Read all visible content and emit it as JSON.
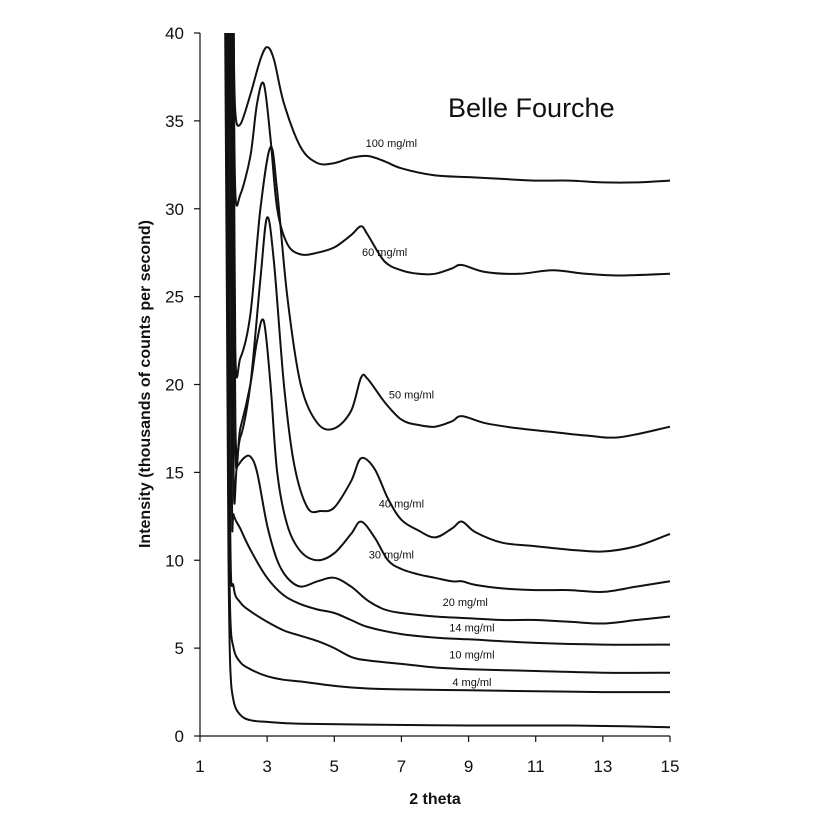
{
  "chart_data": {
    "type": "line",
    "title": "Belle Fourche",
    "xlabel": "2 theta",
    "ylabel": "Intensity  (thousands of counts per second)",
    "xlim": [
      1,
      15
    ],
    "ylim": [
      0,
      40
    ],
    "x_ticks": [
      1,
      3,
      5,
      7,
      9,
      11,
      13,
      15
    ],
    "y_ticks": [
      0,
      5,
      10,
      15,
      20,
      25,
      30,
      35,
      40
    ],
    "grid": false,
    "legend": "none",
    "series": [
      {
        "name": "4 mg/ml",
        "x": [
          1.75,
          1.8,
          1.85,
          1.9,
          2.0,
          2.2,
          2.5,
          3.0,
          4.0,
          6.0,
          9.0,
          12.0,
          15.0
        ],
        "y": [
          40,
          25,
          10,
          4,
          2.0,
          1.2,
          0.9,
          0.8,
          0.7,
          0.65,
          0.6,
          0.6,
          0.5
        ]
      },
      {
        "name": "10 mg/ml",
        "x": [
          1.8,
          1.85,
          1.9,
          2.0,
          2.2,
          2.5,
          3.0,
          3.5,
          4.0,
          5.0,
          6.0,
          7.0,
          9.0,
          11.0,
          13.0,
          15.0
        ],
        "y": [
          40,
          15,
          7,
          5.0,
          4.2,
          3.8,
          3.4,
          3.2,
          3.1,
          2.85,
          2.7,
          2.65,
          2.6,
          2.55,
          2.5,
          2.5
        ]
      },
      {
        "name": "14 mg/ml",
        "x": [
          1.85,
          1.9,
          2.0,
          2.2,
          2.5,
          3.0,
          3.5,
          4.0,
          4.5,
          5.0,
          5.5,
          6.0,
          7.0,
          8.0,
          9.0,
          11.0,
          13.0,
          15.0
        ],
        "y": [
          40,
          12,
          8.5,
          7.6,
          7.1,
          6.5,
          6.0,
          5.7,
          5.4,
          5.0,
          4.5,
          4.3,
          4.1,
          3.9,
          3.8,
          3.7,
          3.6,
          3.6
        ]
      },
      {
        "name": "20 mg/ml",
        "x": [
          1.9,
          1.95,
          2.0,
          2.2,
          2.5,
          3.0,
          3.5,
          4.0,
          4.5,
          5.0,
          5.5,
          6.0,
          7.0,
          8.0,
          9.0,
          11.0,
          13.0,
          15.0
        ],
        "y": [
          40,
          14,
          12.6,
          11.8,
          10.6,
          9.0,
          8.0,
          7.5,
          7.2,
          7.0,
          6.6,
          6.2,
          5.8,
          5.6,
          5.5,
          5.3,
          5.2,
          5.2
        ]
      },
      {
        "name": "30 mg/ml",
        "x": [
          1.95,
          2.0,
          2.1,
          2.3,
          2.5,
          2.7,
          3.0,
          3.3,
          3.6,
          4.0,
          4.5,
          5.0,
          5.5,
          6.0,
          6.5,
          7.0,
          8.0,
          9.0,
          10.0,
          11.0,
          12.0,
          13.0,
          14.0,
          15.0
        ],
        "y": [
          40,
          15.0,
          15.3,
          15.8,
          15.9,
          15.0,
          12.0,
          10.0,
          9.0,
          8.5,
          8.8,
          9.0,
          8.5,
          7.7,
          7.2,
          7.0,
          6.8,
          6.7,
          6.6,
          6.6,
          6.5,
          6.4,
          6.6,
          6.8
        ]
      },
      {
        "name": "40 mg/ml",
        "x": [
          2.0,
          2.05,
          2.2,
          2.5,
          2.7,
          2.9,
          3.1,
          3.3,
          3.6,
          4.0,
          4.5,
          5.0,
          5.5,
          5.8,
          6.2,
          6.6,
          7.0,
          7.5,
          8.0,
          8.5,
          8.8,
          9.2,
          10.0,
          11.0,
          12.0,
          13.0,
          14.0,
          15.0
        ],
        "y": [
          40,
          16.8,
          17.5,
          20.0,
          22.5,
          23.6,
          20.0,
          15.0,
          12.0,
          10.5,
          10.0,
          10.4,
          11.5,
          12.2,
          11.3,
          10.0,
          9.5,
          9.2,
          9.0,
          8.8,
          8.8,
          8.6,
          8.4,
          8.3,
          8.3,
          8.2,
          8.5,
          8.8
        ]
      },
      {
        "name": "50 mg/ml",
        "x": [
          2.0,
          2.05,
          2.2,
          2.5,
          2.8,
          3.0,
          3.2,
          3.5,
          3.8,
          4.2,
          4.6,
          5.0,
          5.5,
          5.8,
          6.2,
          6.6,
          7.0,
          7.5,
          8.0,
          8.5,
          8.8,
          9.2,
          10.0,
          11.0,
          12.0,
          13.0,
          14.0,
          15.0
        ],
        "y": [
          40,
          18.0,
          17.0,
          20.0,
          26.0,
          29.5,
          27.0,
          20.0,
          15.5,
          13.0,
          12.8,
          13.0,
          14.5,
          15.8,
          15.2,
          13.5,
          12.3,
          11.7,
          11.3,
          11.8,
          12.2,
          11.6,
          11.0,
          10.8,
          10.6,
          10.5,
          10.8,
          11.5
        ]
      },
      {
        "name": "60 mg/ml",
        "x": [
          2.0,
          2.05,
          2.2,
          2.5,
          2.8,
          3.1,
          3.3,
          3.6,
          4.0,
          4.5,
          5.0,
          5.5,
          5.8,
          6.0,
          6.5,
          7.0,
          7.5,
          8.0,
          8.5,
          8.8,
          9.5,
          10.5,
          11.5,
          12.5,
          13.5,
          15.0
        ],
        "y": [
          40,
          22.0,
          21.5,
          24.0,
          30.0,
          33.5,
          31.0,
          25.0,
          20.0,
          17.8,
          17.5,
          18.5,
          20.4,
          20.3,
          19.0,
          18.0,
          17.7,
          17.6,
          17.9,
          18.2,
          17.8,
          17.5,
          17.3,
          17.1,
          17.0,
          17.6
        ]
      },
      {
        "name": "100 mg/ml",
        "x": [
          2.0,
          2.05,
          2.2,
          2.5,
          2.7,
          2.9,
          3.1,
          3.3,
          3.6,
          4.0,
          4.5,
          5.0,
          5.5,
          5.8,
          6.0,
          6.5,
          7.0,
          7.5,
          8.0,
          8.5,
          8.8,
          9.5,
          10.5,
          11.5,
          12.5,
          13.5,
          15.0
        ],
        "y": [
          40,
          31.0,
          30.8,
          33.0,
          36.0,
          37.1,
          34.0,
          30.0,
          28.0,
          27.4,
          27.5,
          27.8,
          28.5,
          29.0,
          28.5,
          27.0,
          26.5,
          26.3,
          26.3,
          26.6,
          26.8,
          26.4,
          26.3,
          26.5,
          26.3,
          26.2,
          26.3
        ]
      },
      {
        "name": "",
        "x": [
          2.0,
          2.05,
          2.2,
          2.5,
          2.8,
          3.0,
          3.2,
          3.5,
          4.0,
          4.5,
          5.0,
          5.5,
          6.0,
          6.5,
          7.0,
          8.0,
          9.0,
          10.0,
          11.0,
          12.0,
          13.0,
          14.0,
          15.0
        ],
        "y": [
          40,
          35.5,
          34.8,
          36.5,
          38.5,
          39.2,
          38.5,
          36.0,
          33.5,
          32.6,
          32.6,
          32.9,
          33.0,
          32.7,
          32.3,
          31.9,
          31.8,
          31.7,
          31.6,
          31.6,
          31.5,
          31.5,
          31.6
        ]
      }
    ],
    "annotations": [
      {
        "text": "100 mg/ml",
        "x": 6.7,
        "y": 33.5
      },
      {
        "text": "60 mg/ml",
        "x": 6.5,
        "y": 27.3
      },
      {
        "text": "50 mg/ml",
        "x": 7.3,
        "y": 19.2
      },
      {
        "text": "40 mg/ml",
        "x": 7.0,
        "y": 13.0
      },
      {
        "text": "30 mg/ml",
        "x": 6.7,
        "y": 10.1
      },
      {
        "text": "20 mg/ml",
        "x": 8.9,
        "y": 7.4
      },
      {
        "text": "14 mg/ml",
        "x": 9.1,
        "y": 5.95
      },
      {
        "text": "10 mg/ml",
        "x": 9.1,
        "y": 4.4
      },
      {
        "text": "4 mg/ml",
        "x": 9.1,
        "y": 2.85
      }
    ]
  }
}
